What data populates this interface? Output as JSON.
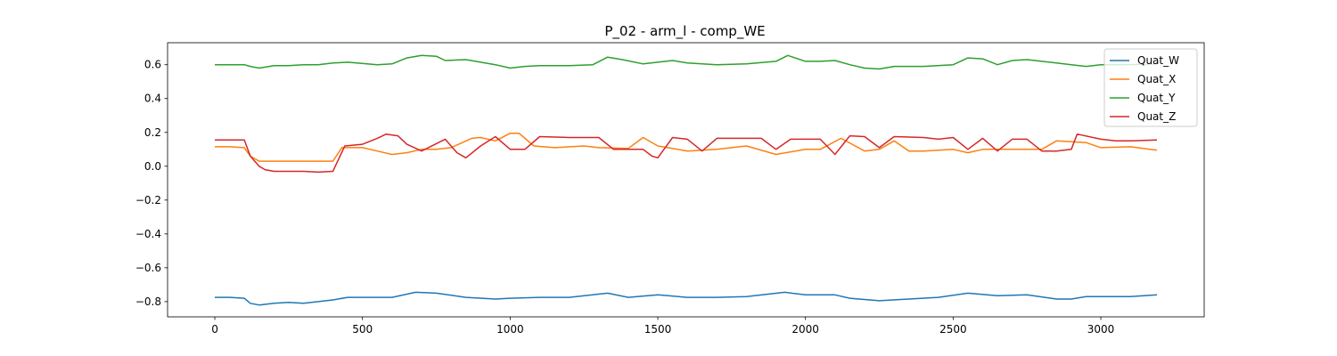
{
  "chart_data": {
    "type": "line",
    "title": "P_02 - arm_l - comp_WE",
    "xlabel": "",
    "ylabel": "",
    "xlim": [
      -160,
      3350
    ],
    "ylim": [
      -0.89,
      0.73
    ],
    "x_ticks": [
      0,
      500,
      1000,
      1500,
      2000,
      2500,
      3000
    ],
    "y_ticks": [
      -0.8,
      -0.6,
      -0.4,
      -0.2,
      0.0,
      0.2,
      0.4,
      0.6
    ],
    "x_tick_labels": [
      "0",
      "500",
      "1000",
      "1500",
      "2000",
      "2500",
      "3000"
    ],
    "y_tick_labels": [
      "−0.8",
      "−0.6",
      "−0.4",
      "−0.2",
      "0.0",
      "0.2",
      "0.4",
      "0.6"
    ],
    "grid": false,
    "legend_position": "top-right",
    "series": [
      {
        "name": "Quat_W",
        "color": "#1f77b4",
        "points": [
          [
            0,
            -0.775
          ],
          [
            50,
            -0.775
          ],
          [
            100,
            -0.78
          ],
          [
            120,
            -0.81
          ],
          [
            150,
            -0.82
          ],
          [
            200,
            -0.81
          ],
          [
            250,
            -0.805
          ],
          [
            300,
            -0.81
          ],
          [
            350,
            -0.8
          ],
          [
            400,
            -0.79
          ],
          [
            450,
            -0.775
          ],
          [
            500,
            -0.775
          ],
          [
            600,
            -0.775
          ],
          [
            680,
            -0.745
          ],
          [
            750,
            -0.75
          ],
          [
            850,
            -0.775
          ],
          [
            950,
            -0.785
          ],
          [
            1000,
            -0.78
          ],
          [
            1100,
            -0.775
          ],
          [
            1200,
            -0.775
          ],
          [
            1330,
            -0.75
          ],
          [
            1400,
            -0.775
          ],
          [
            1500,
            -0.76
          ],
          [
            1600,
            -0.775
          ],
          [
            1700,
            -0.775
          ],
          [
            1800,
            -0.77
          ],
          [
            1930,
            -0.745
          ],
          [
            2000,
            -0.76
          ],
          [
            2100,
            -0.76
          ],
          [
            2150,
            -0.78
          ],
          [
            2250,
            -0.795
          ],
          [
            2350,
            -0.785
          ],
          [
            2450,
            -0.775
          ],
          [
            2550,
            -0.75
          ],
          [
            2650,
            -0.765
          ],
          [
            2750,
            -0.76
          ],
          [
            2850,
            -0.785
          ],
          [
            2900,
            -0.785
          ],
          [
            2950,
            -0.77
          ],
          [
            3000,
            -0.77
          ],
          [
            3100,
            -0.77
          ],
          [
            3190,
            -0.76
          ]
        ]
      },
      {
        "name": "Quat_X",
        "color": "#ff7f0e",
        "points": [
          [
            0,
            0.115
          ],
          [
            50,
            0.115
          ],
          [
            100,
            0.11
          ],
          [
            120,
            0.06
          ],
          [
            150,
            0.03
          ],
          [
            200,
            0.03
          ],
          [
            250,
            0.03
          ],
          [
            300,
            0.03
          ],
          [
            350,
            0.03
          ],
          [
            400,
            0.03
          ],
          [
            430,
            0.11
          ],
          [
            500,
            0.11
          ],
          [
            550,
            0.09
          ],
          [
            600,
            0.07
          ],
          [
            650,
            0.08
          ],
          [
            700,
            0.1
          ],
          [
            750,
            0.1
          ],
          [
            800,
            0.11
          ],
          [
            870,
            0.165
          ],
          [
            900,
            0.17
          ],
          [
            950,
            0.15
          ],
          [
            1000,
            0.195
          ],
          [
            1030,
            0.195
          ],
          [
            1080,
            0.12
          ],
          [
            1150,
            0.11
          ],
          [
            1250,
            0.12
          ],
          [
            1300,
            0.11
          ],
          [
            1400,
            0.105
          ],
          [
            1450,
            0.17
          ],
          [
            1500,
            0.12
          ],
          [
            1600,
            0.09
          ],
          [
            1700,
            0.1
          ],
          [
            1800,
            0.12
          ],
          [
            1900,
            0.07
          ],
          [
            2000,
            0.1
          ],
          [
            2050,
            0.1
          ],
          [
            2120,
            0.165
          ],
          [
            2200,
            0.09
          ],
          [
            2250,
            0.1
          ],
          [
            2300,
            0.15
          ],
          [
            2350,
            0.09
          ],
          [
            2400,
            0.09
          ],
          [
            2500,
            0.1
          ],
          [
            2550,
            0.08
          ],
          [
            2600,
            0.1
          ],
          [
            2700,
            0.1
          ],
          [
            2800,
            0.1
          ],
          [
            2850,
            0.15
          ],
          [
            2950,
            0.14
          ],
          [
            3000,
            0.11
          ],
          [
            3100,
            0.115
          ],
          [
            3190,
            0.095
          ]
        ]
      },
      {
        "name": "Quat_Y",
        "color": "#2ca02c",
        "points": [
          [
            0,
            0.6
          ],
          [
            50,
            0.6
          ],
          [
            100,
            0.6
          ],
          [
            120,
            0.59
          ],
          [
            150,
            0.58
          ],
          [
            200,
            0.595
          ],
          [
            250,
            0.595
          ],
          [
            300,
            0.6
          ],
          [
            350,
            0.6
          ],
          [
            400,
            0.61
          ],
          [
            450,
            0.615
          ],
          [
            550,
            0.6
          ],
          [
            600,
            0.605
          ],
          [
            650,
            0.64
          ],
          [
            700,
            0.655
          ],
          [
            750,
            0.65
          ],
          [
            780,
            0.625
          ],
          [
            850,
            0.63
          ],
          [
            950,
            0.6
          ],
          [
            1000,
            0.58
          ],
          [
            1050,
            0.59
          ],
          [
            1100,
            0.595
          ],
          [
            1200,
            0.595
          ],
          [
            1280,
            0.6
          ],
          [
            1330,
            0.645
          ],
          [
            1380,
            0.63
          ],
          [
            1450,
            0.605
          ],
          [
            1550,
            0.625
          ],
          [
            1600,
            0.61
          ],
          [
            1700,
            0.6
          ],
          [
            1800,
            0.605
          ],
          [
            1900,
            0.62
          ],
          [
            1940,
            0.655
          ],
          [
            2000,
            0.62
          ],
          [
            2050,
            0.62
          ],
          [
            2100,
            0.625
          ],
          [
            2150,
            0.6
          ],
          [
            2200,
            0.58
          ],
          [
            2250,
            0.575
          ],
          [
            2300,
            0.59
          ],
          [
            2400,
            0.59
          ],
          [
            2500,
            0.6
          ],
          [
            2550,
            0.64
          ],
          [
            2600,
            0.635
          ],
          [
            2650,
            0.6
          ],
          [
            2700,
            0.625
          ],
          [
            2750,
            0.63
          ],
          [
            2850,
            0.61
          ],
          [
            2900,
            0.6
          ],
          [
            2950,
            0.59
          ],
          [
            3000,
            0.6
          ],
          [
            3100,
            0.6
          ],
          [
            3190,
            0.605
          ]
        ]
      },
      {
        "name": "Quat_Z",
        "color": "#d62728",
        "points": [
          [
            0,
            0.155
          ],
          [
            50,
            0.155
          ],
          [
            100,
            0.155
          ],
          [
            120,
            0.06
          ],
          [
            150,
            0.0
          ],
          [
            170,
            -0.02
          ],
          [
            200,
            -0.03
          ],
          [
            250,
            -0.03
          ],
          [
            300,
            -0.03
          ],
          [
            350,
            -0.035
          ],
          [
            400,
            -0.03
          ],
          [
            440,
            0.12
          ],
          [
            500,
            0.13
          ],
          [
            550,
            0.165
          ],
          [
            580,
            0.19
          ],
          [
            620,
            0.18
          ],
          [
            650,
            0.13
          ],
          [
            700,
            0.09
          ],
          [
            780,
            0.16
          ],
          [
            820,
            0.08
          ],
          [
            850,
            0.05
          ],
          [
            900,
            0.12
          ],
          [
            950,
            0.175
          ],
          [
            1000,
            0.1
          ],
          [
            1050,
            0.1
          ],
          [
            1100,
            0.175
          ],
          [
            1200,
            0.17
          ],
          [
            1300,
            0.17
          ],
          [
            1350,
            0.1
          ],
          [
            1400,
            0.1
          ],
          [
            1450,
            0.1
          ],
          [
            1480,
            0.06
          ],
          [
            1500,
            0.05
          ],
          [
            1550,
            0.17
          ],
          [
            1600,
            0.16
          ],
          [
            1650,
            0.09
          ],
          [
            1700,
            0.165
          ],
          [
            1800,
            0.165
          ],
          [
            1850,
            0.165
          ],
          [
            1900,
            0.1
          ],
          [
            1950,
            0.16
          ],
          [
            2050,
            0.16
          ],
          [
            2100,
            0.07
          ],
          [
            2150,
            0.18
          ],
          [
            2200,
            0.175
          ],
          [
            2250,
            0.11
          ],
          [
            2300,
            0.175
          ],
          [
            2400,
            0.17
          ],
          [
            2450,
            0.16
          ],
          [
            2500,
            0.17
          ],
          [
            2550,
            0.1
          ],
          [
            2600,
            0.165
          ],
          [
            2650,
            0.09
          ],
          [
            2700,
            0.16
          ],
          [
            2750,
            0.16
          ],
          [
            2800,
            0.09
          ],
          [
            2850,
            0.09
          ],
          [
            2900,
            0.1
          ],
          [
            2920,
            0.19
          ],
          [
            3000,
            0.16
          ],
          [
            3050,
            0.15
          ],
          [
            3100,
            0.15
          ],
          [
            3190,
            0.155
          ]
        ]
      }
    ]
  }
}
